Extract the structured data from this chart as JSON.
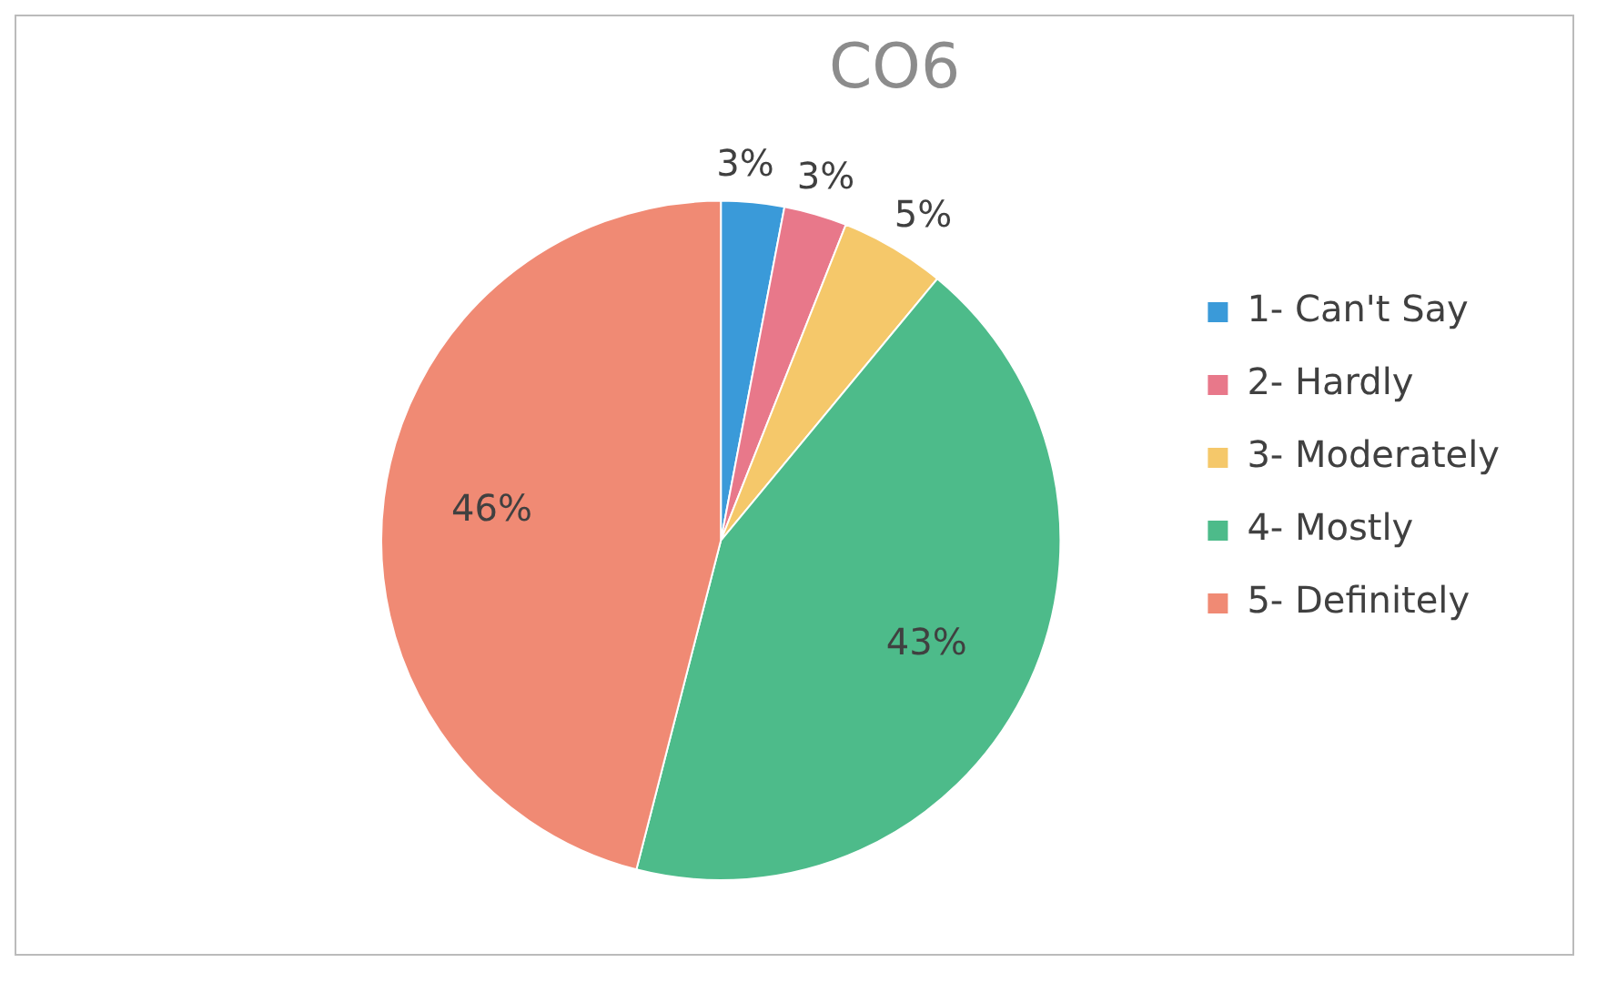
{
  "chart_data": {
    "type": "pie",
    "title": "CO6",
    "categories": [
      "1- Can't Say",
      "2- Hardly",
      "3- Moderately",
      "4- Mostly",
      "5- Definitely"
    ],
    "values": [
      3,
      3,
      5,
      43,
      46
    ],
    "colors": [
      "#3a9ad9",
      "#e8788a",
      "#f5c86a",
      "#4dbb8a",
      "#f08a74"
    ],
    "value_labels": [
      "3%",
      "3%",
      "5%",
      "43%",
      "46%"
    ],
    "legend": "right"
  }
}
